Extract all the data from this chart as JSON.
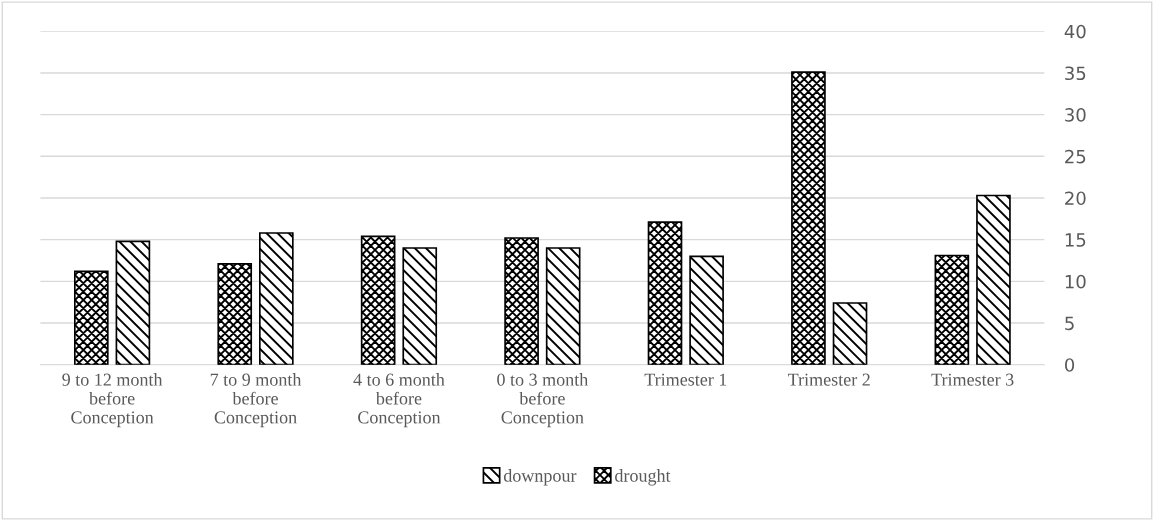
{
  "chart_data": {
    "type": "bar",
    "categories": [
      "9 to 12 month\nbefore\nConception",
      "7 to 9 month\nbefore\nConception",
      "4 to 6 month\nbefore\nConception",
      "0 to 3 month\nbefore\nConception",
      "Trimester 1",
      "Trimester 2",
      "Trimester 3"
    ],
    "series": [
      {
        "name": "drought",
        "color": "#000000",
        "values": [
          11.2,
          12.1,
          15.4,
          15.2,
          17.1,
          35.1,
          13.1
        ]
      },
      {
        "name": "downpour",
        "color": "#000000",
        "values": [
          14.8,
          15.8,
          14.0,
          14.0,
          13.0,
          7.4,
          20.3
        ]
      }
    ],
    "ylim": [
      0,
      40
    ],
    "yticks": [
      0,
      5,
      10,
      15,
      20,
      25,
      30,
      35,
      40
    ],
    "grid": "y",
    "legend": "bottom"
  }
}
